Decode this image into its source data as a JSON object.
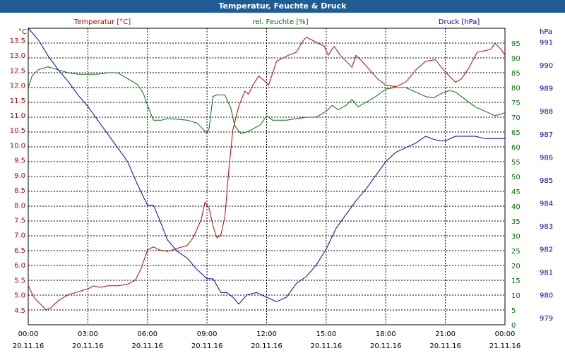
{
  "window": {
    "title": "Temperatur, Feuchte & Druck"
  },
  "chart_data": {
    "type": "line",
    "title": "Temperatur, Feuchte & Druck",
    "grid": true,
    "x": {
      "unit": "hours",
      "range": [
        0,
        24
      ],
      "ticks": [
        {
          "hour": 0,
          "time": "00:00",
          "date": "20.11.16"
        },
        {
          "hour": 3,
          "time": "03:00",
          "date": "20.11.16"
        },
        {
          "hour": 6,
          "time": "06:00",
          "date": "20.11.16"
        },
        {
          "hour": 9,
          "time": "09:00",
          "date": "20.11.16"
        },
        {
          "hour": 12,
          "time": "12:00",
          "date": "20.11.16"
        },
        {
          "hour": 15,
          "time": "15:00",
          "date": "20.11.16"
        },
        {
          "hour": 18,
          "time": "18:00",
          "date": "20.11.16"
        },
        {
          "hour": 21,
          "time": "21:00",
          "date": "20.11.16"
        },
        {
          "hour": 24,
          "time": "00:00",
          "date": "21.11.16"
        }
      ]
    },
    "axes": {
      "temperature": {
        "label": "Temperatur [°C]",
        "unit": "°C",
        "range": [
          4.0,
          13.9
        ],
        "ticks": [
          "13.5",
          "13.0",
          "12.5",
          "12.0",
          "11.5",
          "11.0",
          "10.5",
          "10.0",
          "9.5",
          "9.0",
          "8.5",
          "8.0",
          "7.5",
          "7.0",
          "6.5",
          "6.0",
          "5.5",
          "5.0",
          "4.5"
        ],
        "color": "#c00000"
      },
      "humidity": {
        "label": "rel. Feuchte [%]",
        "unit": "%",
        "range": [
          0,
          100
        ],
        "ticks": [
          "95",
          "90",
          "85",
          "80",
          "75",
          "70",
          "65",
          "60",
          "55",
          "50",
          "45",
          "40",
          "35",
          "30",
          "25",
          "20",
          "15",
          "10",
          "5",
          "0"
        ],
        "color": "#007000"
      },
      "pressure": {
        "label": "Druck [hPa]",
        "unit": "hPa",
        "range": [
          978.7,
          991.6
        ],
        "ticks": [
          "991",
          "990",
          "989",
          "988",
          "987",
          "986",
          "985",
          "984",
          "983",
          "982",
          "981",
          "980",
          "979"
        ],
        "color": "#0000c0"
      }
    },
    "series": [
      {
        "name": "Temperatur [°C]",
        "axis": "temperature",
        "color": "#c00000",
        "points": [
          [
            0,
            5.3
          ],
          [
            0.3,
            4.9
          ],
          [
            0.6,
            4.7
          ],
          [
            0.9,
            4.5
          ],
          [
            1.1,
            4.55
          ],
          [
            1.5,
            4.8
          ],
          [
            2,
            5.0
          ],
          [
            2.5,
            5.1
          ],
          [
            3,
            5.2
          ],
          [
            3.3,
            5.3
          ],
          [
            3.6,
            5.25
          ],
          [
            4,
            5.3
          ],
          [
            4.5,
            5.3
          ],
          [
            5,
            5.35
          ],
          [
            5.4,
            5.5
          ],
          [
            5.7,
            5.9
          ],
          [
            6,
            6.5
          ],
          [
            6.3,
            6.6
          ],
          [
            6.6,
            6.5
          ],
          [
            7,
            6.45
          ],
          [
            7.5,
            6.55
          ],
          [
            8,
            6.65
          ],
          [
            8.3,
            6.9
          ],
          [
            8.7,
            7.5
          ],
          [
            8.9,
            8.1
          ],
          [
            9.1,
            7.9
          ],
          [
            9.3,
            7.3
          ],
          [
            9.5,
            6.9
          ],
          [
            9.7,
            7.0
          ],
          [
            9.9,
            7.6
          ],
          [
            10.1,
            9.2
          ],
          [
            10.3,
            10.5
          ],
          [
            10.6,
            11.3
          ],
          [
            10.9,
            11.8
          ],
          [
            11.1,
            11.7
          ],
          [
            11.3,
            12.0
          ],
          [
            11.6,
            12.3
          ],
          [
            11.8,
            12.2
          ],
          [
            12.1,
            12.0
          ],
          [
            12.5,
            12.8
          ],
          [
            12.8,
            12.9
          ],
          [
            13.1,
            13.0
          ],
          [
            13.5,
            13.1
          ],
          [
            13.8,
            13.45
          ],
          [
            14,
            13.6
          ],
          [
            14.3,
            13.5
          ],
          [
            14.6,
            13.4
          ],
          [
            14.9,
            13.3
          ],
          [
            15.1,
            13.0
          ],
          [
            15.4,
            13.3
          ],
          [
            15.7,
            13.0
          ],
          [
            16,
            12.8
          ],
          [
            16.3,
            12.6
          ],
          [
            16.5,
            13.0
          ],
          [
            16.8,
            12.8
          ],
          [
            17.2,
            12.5
          ],
          [
            17.6,
            12.2
          ],
          [
            18,
            12.0
          ],
          [
            18.5,
            11.95
          ],
          [
            19,
            12.1
          ],
          [
            19.5,
            12.5
          ],
          [
            20,
            12.8
          ],
          [
            20.5,
            12.85
          ],
          [
            20.8,
            12.6
          ],
          [
            21.2,
            12.3
          ],
          [
            21.5,
            12.1
          ],
          [
            21.8,
            12.2
          ],
          [
            22.2,
            12.6
          ],
          [
            22.6,
            13.1
          ],
          [
            23,
            13.15
          ],
          [
            23.3,
            13.2
          ],
          [
            23.5,
            13.4
          ],
          [
            23.8,
            13.2
          ],
          [
            24,
            13.0
          ]
        ]
      },
      {
        "name": "rel. Feuchte [%]",
        "axis": "humidity",
        "color": "#007000",
        "points": [
          [
            0,
            80
          ],
          [
            0.2,
            84
          ],
          [
            0.5,
            86
          ],
          [
            1,
            87
          ],
          [
            1.5,
            86
          ],
          [
            2,
            85
          ],
          [
            2.5,
            84.5
          ],
          [
            3,
            84.5
          ],
          [
            3.5,
            84.5
          ],
          [
            4,
            85
          ],
          [
            4.5,
            85
          ],
          [
            5,
            83
          ],
          [
            5.5,
            81
          ],
          [
            5.8,
            78
          ],
          [
            6,
            74
          ],
          [
            6.3,
            69
          ],
          [
            6.7,
            69
          ],
          [
            7,
            69.5
          ],
          [
            7.5,
            69.3
          ],
          [
            8,
            69
          ],
          [
            8.5,
            68
          ],
          [
            8.8,
            66
          ],
          [
            9,
            64.5
          ],
          [
            9.1,
            66
          ],
          [
            9.3,
            77
          ],
          [
            9.5,
            77.5
          ],
          [
            9.9,
            77.5
          ],
          [
            10.2,
            73
          ],
          [
            10.4,
            67
          ],
          [
            10.7,
            64.5
          ],
          [
            11,
            65
          ],
          [
            11.3,
            66
          ],
          [
            11.7,
            67.5
          ],
          [
            12,
            70.5
          ],
          [
            12.3,
            69
          ],
          [
            12.7,
            69
          ],
          [
            13,
            69
          ],
          [
            13.5,
            69.5
          ],
          [
            14,
            70
          ],
          [
            14.5,
            70
          ],
          [
            15,
            72
          ],
          [
            15.3,
            74
          ],
          [
            15.6,
            72.5
          ],
          [
            16,
            74
          ],
          [
            16.3,
            76
          ],
          [
            16.6,
            73.5
          ],
          [
            17,
            75
          ],
          [
            17.5,
            77
          ],
          [
            18,
            79.5
          ],
          [
            18.5,
            80
          ],
          [
            19,
            80
          ],
          [
            19.5,
            78.5
          ],
          [
            20,
            77
          ],
          [
            20.4,
            76.5
          ],
          [
            20.8,
            78
          ],
          [
            21.2,
            79
          ],
          [
            21.5,
            78.5
          ],
          [
            22,
            76
          ],
          [
            22.5,
            73.5
          ],
          [
            23,
            72
          ],
          [
            23.5,
            70.5
          ],
          [
            24,
            71.5
          ]
        ]
      },
      {
        "name": "Druck [hPa]",
        "axis": "pressure",
        "color": "#0000c0",
        "points": [
          [
            0,
            991.6
          ],
          [
            0.5,
            991.1
          ],
          [
            1,
            990.4
          ],
          [
            1.5,
            989.8
          ],
          [
            2,
            989.3
          ],
          [
            2.5,
            988.7
          ],
          [
            3,
            988.2
          ],
          [
            3.5,
            987.6
          ],
          [
            4,
            987.0
          ],
          [
            4.5,
            986.4
          ],
          [
            5,
            985.8
          ],
          [
            5.5,
            984.8
          ],
          [
            6,
            983.9
          ],
          [
            6.3,
            983.9
          ],
          [
            6.6,
            983.3
          ],
          [
            7,
            982.4
          ],
          [
            7.5,
            981.9
          ],
          [
            8,
            981.6
          ],
          [
            8.5,
            981.1
          ],
          [
            9,
            980.7
          ],
          [
            9.3,
            980.7
          ],
          [
            9.7,
            980.1
          ],
          [
            10,
            980.1
          ],
          [
            10.3,
            979.9
          ],
          [
            10.6,
            979.6
          ],
          [
            11,
            980.0
          ],
          [
            11.5,
            980.1
          ],
          [
            12,
            979.9
          ],
          [
            12.5,
            979.7
          ],
          [
            13,
            979.9
          ],
          [
            13.5,
            980.5
          ],
          [
            14,
            980.8
          ],
          [
            14.5,
            981.3
          ],
          [
            15,
            982.0
          ],
          [
            15.5,
            982.9
          ],
          [
            16,
            983.5
          ],
          [
            16.5,
            984.1
          ],
          [
            17,
            984.6
          ],
          [
            17.5,
            985.2
          ],
          [
            18,
            985.8
          ],
          [
            18.5,
            986.2
          ],
          [
            19,
            986.4
          ],
          [
            19.5,
            986.6
          ],
          [
            20,
            986.9
          ],
          [
            20.3,
            986.8
          ],
          [
            20.7,
            986.7
          ],
          [
            21,
            986.7
          ],
          [
            21.5,
            986.9
          ],
          [
            22,
            986.9
          ],
          [
            22.5,
            986.9
          ],
          [
            23,
            986.8
          ],
          [
            23.5,
            986.8
          ],
          [
            24,
            986.8
          ]
        ]
      }
    ]
  }
}
